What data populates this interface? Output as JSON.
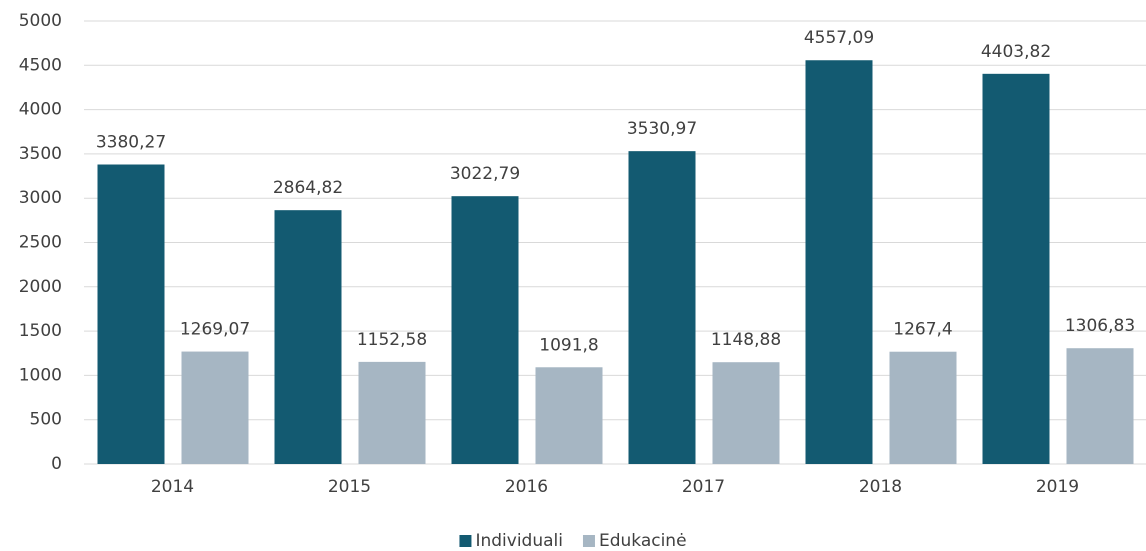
{
  "chart_data": {
    "type": "bar",
    "categories": [
      "2014",
      "2015",
      "2016",
      "2017",
      "2018",
      "2019"
    ],
    "series": [
      {
        "name": "Individuali",
        "color": "#135a71",
        "values": [
          3380.27,
          2864.82,
          3022.79,
          3530.97,
          4557.09,
          4403.82
        ],
        "value_labels": [
          "3380,27",
          "2864,82",
          "3022,79",
          "3530,97",
          "4557,09",
          "4403,82"
        ]
      },
      {
        "name": "Edukacinė",
        "color": "#a6b6c3",
        "values": [
          1269.07,
          1152.58,
          1091.8,
          1148.88,
          1267.4,
          1306.83
        ],
        "value_labels": [
          "1269,07",
          "1152,58",
          "1091,8",
          "1148,88",
          "1267,4",
          "1306,83"
        ]
      }
    ],
    "ylim": [
      0,
      5000
    ],
    "yticks": [
      0,
      500,
      1000,
      1500,
      2000,
      2500,
      3000,
      3500,
      4000,
      4500,
      5000
    ],
    "grid": true,
    "legend": "bottom"
  }
}
